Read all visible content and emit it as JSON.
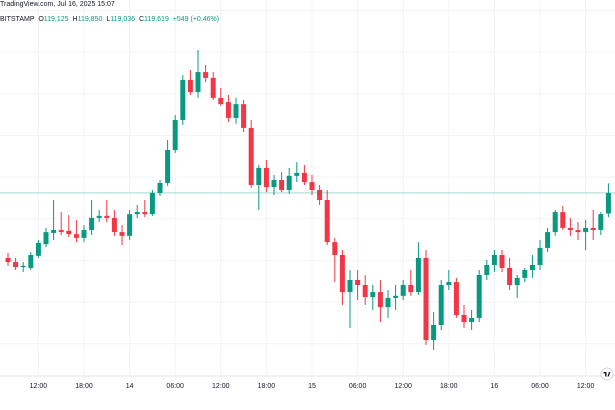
{
  "chart_data": {
    "type": "candlestick",
    "title": "TradingView.com, Jul 16, 2025 15:07",
    "symbol": "BITSTAMP",
    "quote": [
      {
        "key": "O",
        "value": "119,125"
      },
      {
        "key": "H",
        "value": "119,850"
      },
      {
        "key": "L",
        "value": "119,036"
      },
      {
        "key": "C",
        "value": "119,619"
      }
    ],
    "change": "+549 (+0.46%)",
    "up_color": "#089981",
    "down_color": "#f23645",
    "price_line_color": "#089981",
    "grid": true,
    "categories": [
      null,
      null,
      null,
      null,
      "12:00",
      null,
      null,
      null,
      null,
      null,
      "18:00",
      null,
      null,
      null,
      null,
      null,
      "14",
      null,
      null,
      null,
      null,
      null,
      "06:00",
      null,
      null,
      null,
      null,
      null,
      "12:00",
      null,
      null,
      null,
      null,
      null,
      "18:00",
      null,
      null,
      null,
      null,
      null,
      "15",
      null,
      null,
      null,
      null,
      null,
      "06:00",
      null,
      null,
      null,
      null,
      null,
      "12:00",
      null,
      null,
      null,
      null,
      null,
      "18:00",
      null,
      null,
      null,
      null,
      null,
      "16",
      null,
      null,
      null,
      null,
      null,
      "06:00",
      null,
      null,
      null,
      null,
      null,
      "12:00",
      null,
      null,
      null
    ],
    "ohlc": [
      [
        118060,
        118180,
        117870,
        117960
      ],
      [
        117960,
        118060,
        117770,
        117840
      ],
      [
        117840,
        117960,
        117720,
        117870
      ],
      [
        117820,
        118200,
        117770,
        118130
      ],
      [
        118110,
        118490,
        118060,
        118420
      ],
      [
        118390,
        118780,
        118320,
        118680
      ],
      [
        118660,
        119450,
        118490,
        118730
      ],
      [
        118730,
        119160,
        118610,
        118680
      ],
      [
        118710,
        119090,
        118560,
        118630
      ],
      [
        118630,
        118970,
        118440,
        118540
      ],
      [
        118540,
        118850,
        118440,
        118730
      ],
      [
        118730,
        119450,
        118610,
        119020
      ],
      [
        119020,
        119210,
        118920,
        119070
      ],
      [
        119070,
        119450,
        118920,
        119020
      ],
      [
        119020,
        119210,
        118590,
        118680
      ],
      [
        118680,
        118850,
        118370,
        118590
      ],
      [
        118590,
        119210,
        118490,
        119110
      ],
      [
        119110,
        119330,
        119020,
        119160
      ],
      [
        119160,
        119450,
        119040,
        119110
      ],
      [
        119110,
        119690,
        119070,
        119620
      ],
      [
        119620,
        119930,
        119550,
        119860
      ],
      [
        119860,
        120890,
        119790,
        120650
      ],
      [
        120650,
        121490,
        120580,
        121370
      ],
      [
        121370,
        122450,
        121250,
        122330
      ],
      [
        122330,
        122570,
        121970,
        122040
      ],
      [
        122040,
        123050,
        121900,
        122520
      ],
      [
        122520,
        122690,
        122280,
        122380
      ],
      [
        122380,
        122520,
        121850,
        121900
      ],
      [
        121900,
        122140,
        121710,
        121750
      ],
      [
        121800,
        121970,
        121320,
        121420
      ],
      [
        121420,
        121900,
        121280,
        121750
      ],
      [
        121750,
        121850,
        121080,
        121180
      ],
      [
        121180,
        121370,
        119740,
        119810
      ],
      [
        119810,
        120290,
        119210,
        120220
      ],
      [
        120220,
        120410,
        119640,
        119760
      ],
      [
        119760,
        120050,
        119570,
        119930
      ],
      [
        119930,
        120120,
        119640,
        119690
      ],
      [
        119690,
        120220,
        119600,
        120030
      ],
      [
        120030,
        120360,
        119880,
        120100
      ],
      [
        120100,
        120290,
        119810,
        119880
      ],
      [
        119880,
        120050,
        119570,
        119690
      ],
      [
        119690,
        119810,
        119330,
        119450
      ],
      [
        119450,
        119690,
        118370,
        118440
      ],
      [
        118440,
        118540,
        117480,
        118130
      ],
      [
        118130,
        118250,
        116930,
        117240
      ],
      [
        117240,
        117770,
        116380,
        117530
      ],
      [
        117530,
        117770,
        117050,
        117410
      ],
      [
        117410,
        117650,
        116930,
        117120
      ],
      [
        117120,
        117410,
        116810,
        117240
      ],
      [
        117240,
        117530,
        116520,
        116880
      ],
      [
        116880,
        117290,
        116620,
        117100
      ],
      [
        117100,
        117410,
        116810,
        117150
      ],
      [
        117150,
        117530,
        117050,
        117410
      ],
      [
        117410,
        117770,
        117150,
        117240
      ],
      [
        117240,
        118440,
        117170,
        118060
      ],
      [
        118060,
        118250,
        115970,
        116090
      ],
      [
        116090,
        116760,
        115850,
        116450
      ],
      [
        116450,
        117530,
        116330,
        117410
      ],
      [
        117410,
        117770,
        117290,
        117480
      ],
      [
        117480,
        117580,
        116620,
        116690
      ],
      [
        116690,
        116930,
        116380,
        116520
      ],
      [
        116520,
        116810,
        116330,
        116620
      ],
      [
        116620,
        117770,
        116520,
        117650
      ],
      [
        117650,
        118010,
        117530,
        117890
      ],
      [
        117890,
        118250,
        117720,
        118130
      ],
      [
        118130,
        118250,
        117720,
        117820
      ],
      [
        117820,
        118060,
        117290,
        117410
      ],
      [
        117410,
        117650,
        117100,
        117580
      ],
      [
        117580,
        117820,
        117480,
        117770
      ],
      [
        117770,
        118130,
        117580,
        117890
      ],
      [
        117890,
        118490,
        117770,
        118300
      ],
      [
        118300,
        118780,
        118200,
        118680
      ],
      [
        118680,
        119210,
        118590,
        119160
      ],
      [
        119160,
        119310,
        118730,
        118780
      ],
      [
        118780,
        119020,
        118590,
        118730
      ],
      [
        118730,
        118920,
        118490,
        118680
      ],
      [
        118680,
        118970,
        118250,
        118780
      ],
      [
        118780,
        119210,
        118490,
        118730
      ],
      [
        118730,
        119160,
        118610,
        119110
      ],
      [
        119125,
        119850,
        119036,
        119619
      ]
    ],
    "ylim": [
      115250,
      124250
    ],
    "yticks": [
      116000,
      117000,
      118000,
      119000,
      120000,
      121000,
      122000,
      123000,
      124000
    ]
  }
}
